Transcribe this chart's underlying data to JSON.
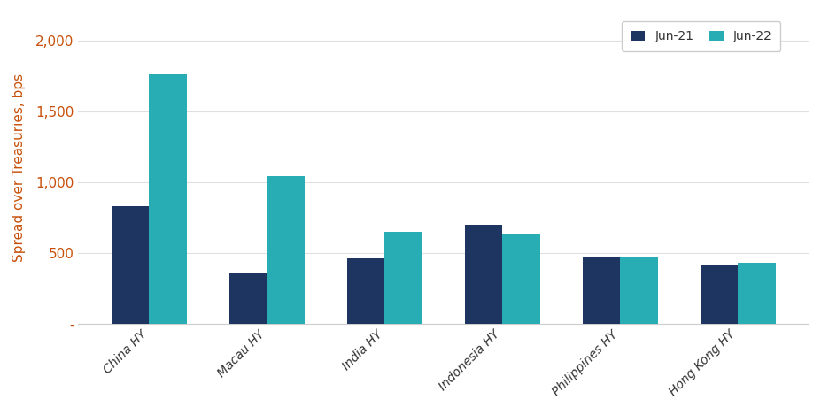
{
  "categories": [
    "China HY",
    "Macau HY",
    "India HY",
    "Indonesia HY",
    "Philippines HY",
    "Hong Kong HY"
  ],
  "jun21_values": [
    830,
    355,
    460,
    700,
    475,
    415
  ],
  "jun22_values": [
    1760,
    1040,
    650,
    635,
    470,
    430
  ],
  "color_jun21": "#1e3461",
  "color_jun22": "#29adb5",
  "ylabel": "Spread over Treasuries, bps",
  "legend_jun21": "Jun-21",
  "legend_jun22": "Jun-22",
  "ylim": [
    0,
    2200
  ],
  "yticks": [
    0,
    500,
    1000,
    1500,
    2000
  ],
  "ytick_labels": [
    "-",
    "500",
    "1,000",
    "1,500",
    "2,000"
  ],
  "bar_width": 0.32,
  "background_color": "#ffffff",
  "axis_label_color": "#c8500a",
  "tick_label_color": "#333333",
  "legend_text_color": "#333333"
}
